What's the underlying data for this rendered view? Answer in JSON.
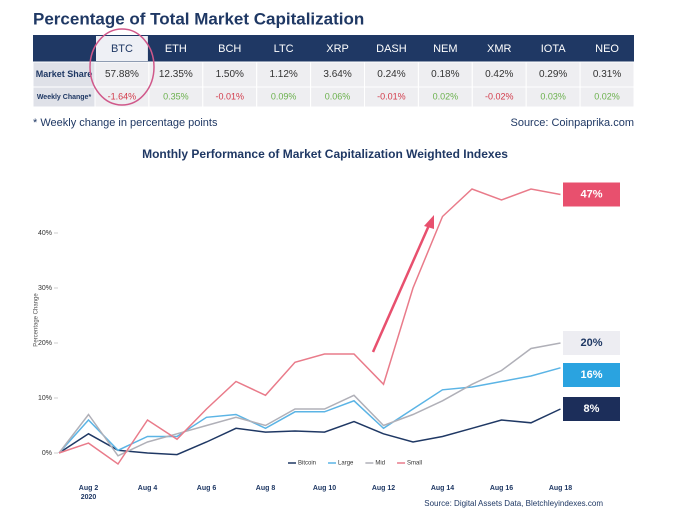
{
  "title": "Percentage of Total Market Capitalization",
  "table": {
    "columns": [
      "BTC",
      "ETH",
      "BCH",
      "LTC",
      "XRP",
      "DASH",
      "NEM",
      "XMR",
      "IOTA",
      "NEO"
    ],
    "rows": [
      {
        "label": "Market Share",
        "cells": [
          "57.88%",
          "12.35%",
          "1.50%",
          "1.12%",
          "3.64%",
          "0.24%",
          "0.18%",
          "0.42%",
          "0.29%",
          "0.31%"
        ]
      },
      {
        "label": "Weekly Change*",
        "cells": [
          "-1.64%",
          "0.35%",
          "-0.01%",
          "0.09%",
          "0.06%",
          "-0.01%",
          "0.02%",
          "-0.02%",
          "0.03%",
          "0.02%"
        ]
      }
    ]
  },
  "footnote": "* Weekly change in percentage points",
  "source": "Source: Coinpaprika.com",
  "chart_data": {
    "type": "line",
    "title": "Monthly Performance of Market Capitalization Weighted Indexes",
    "y_label": "Percentage Change",
    "categories": [
      null,
      "Aug 2",
      null,
      "Aug 4",
      null,
      "Aug 6",
      null,
      "Aug 8",
      null,
      "Aug 10",
      null,
      "Aug 12",
      null,
      "Aug 14",
      null,
      "Aug 16",
      null,
      "Aug 18"
    ],
    "x_year": "2020",
    "ylim": [
      -4,
      50
    ],
    "yticks": [
      {
        "value": 0,
        "label": "0%"
      },
      {
        "value": 10,
        "label": "10%"
      },
      {
        "value": 20,
        "label": "20%"
      },
      {
        "value": 30,
        "label": "30%"
      },
      {
        "value": 40,
        "label": "40%"
      }
    ],
    "grid": false,
    "series": [
      {
        "name": "Bitcoin",
        "color": "#1f3864",
        "values": [
          0,
          3.5,
          0.5,
          0,
          -0.3,
          2,
          4.5,
          3.8,
          4,
          3.8,
          5.7,
          3.5,
          2,
          3,
          4.5,
          6,
          5.5,
          8
        ],
        "end_label": "8%",
        "label_bg": "#1c2e5a",
        "label_color": "#ffffff"
      },
      {
        "name": "Large",
        "color": "#5bb4e5",
        "values": [
          0,
          6,
          0.5,
          3,
          3,
          6.5,
          7,
          4.5,
          7.5,
          7.5,
          9.5,
          4.5,
          8,
          11.5,
          12,
          13,
          14,
          15.5
        ],
        "end_label": "16%",
        "label_bg": "#2aa3e0",
        "label_color": "#ffffff"
      },
      {
        "name": "Mid",
        "color": "#b0b0b8",
        "values": [
          0,
          7,
          -0.5,
          2,
          3.5,
          5,
          6.5,
          5,
          8,
          8,
          10.5,
          5,
          7,
          9.5,
          12.5,
          15,
          19,
          20
        ],
        "end_label": "20%",
        "label_bg": "#ededf2",
        "label_color": "#1f3864"
      },
      {
        "name": "Small",
        "color": "#e97b8a",
        "values": [
          0,
          1.8,
          -2,
          6,
          2.5,
          8,
          13,
          10.5,
          16.5,
          18,
          18,
          12.5,
          30,
          43,
          48,
          46,
          48,
          47
        ],
        "end_label": "47%",
        "label_bg": "#e8506e",
        "label_color": "#ffffff"
      }
    ],
    "source": "Source: Digital Assets Data, Bletchleyindexes.com"
  }
}
